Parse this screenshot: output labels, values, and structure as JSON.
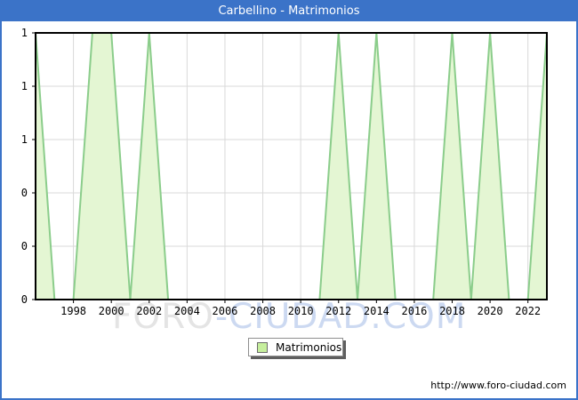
{
  "window": {
    "title": "Carbellino - Matrimonios"
  },
  "chart_data": {
    "type": "area",
    "title": "Carbellino - Matrimonios",
    "series": [
      {
        "name": "Matrimonios",
        "x": [
          1996,
          1997,
          1998,
          1999,
          2000,
          2001,
          2002,
          2003,
          2004,
          2005,
          2006,
          2007,
          2008,
          2009,
          2010,
          2011,
          2012,
          2013,
          2014,
          2015,
          2016,
          2017,
          2018,
          2019,
          2020,
          2021,
          2022,
          2023
        ],
        "values": [
          1,
          0,
          0,
          1,
          1,
          0,
          1,
          0,
          0,
          0,
          0,
          0,
          0,
          0,
          0,
          0,
          1,
          0,
          1,
          0,
          0,
          0,
          1,
          0,
          1,
          0,
          0,
          1
        ]
      }
    ],
    "xlim": [
      1996,
      2023
    ],
    "ylim": [
      0,
      1
    ],
    "xticks": [
      1998,
      2000,
      2002,
      2004,
      2006,
      2008,
      2010,
      2012,
      2014,
      2016,
      2018,
      2020,
      2022
    ],
    "yticks": [
      {
        "value": 1.0,
        "label": "1"
      },
      {
        "value": 0.8,
        "label": "1"
      },
      {
        "value": 0.6,
        "label": "1"
      },
      {
        "value": 0.4,
        "label": "0"
      },
      {
        "value": 0.2,
        "label": "0"
      },
      {
        "value": 0.0,
        "label": "0"
      }
    ],
    "grid": true,
    "legend_position": "bottom-center",
    "colors": {
      "frame_blue": "#3b73c8",
      "area_fill": "#e4f6d3",
      "area_stroke": "#8bcd8b",
      "gridline": "#d9d9d9",
      "axis": "#000000",
      "swatch_fill": "#c6ef9d"
    }
  },
  "legend": {
    "label": "Matrimonios"
  },
  "watermark": {
    "part1": "FORO",
    "part2": "-CIUDAD.COM"
  },
  "footer": {
    "url": "http://www.foro-ciudad.com"
  }
}
